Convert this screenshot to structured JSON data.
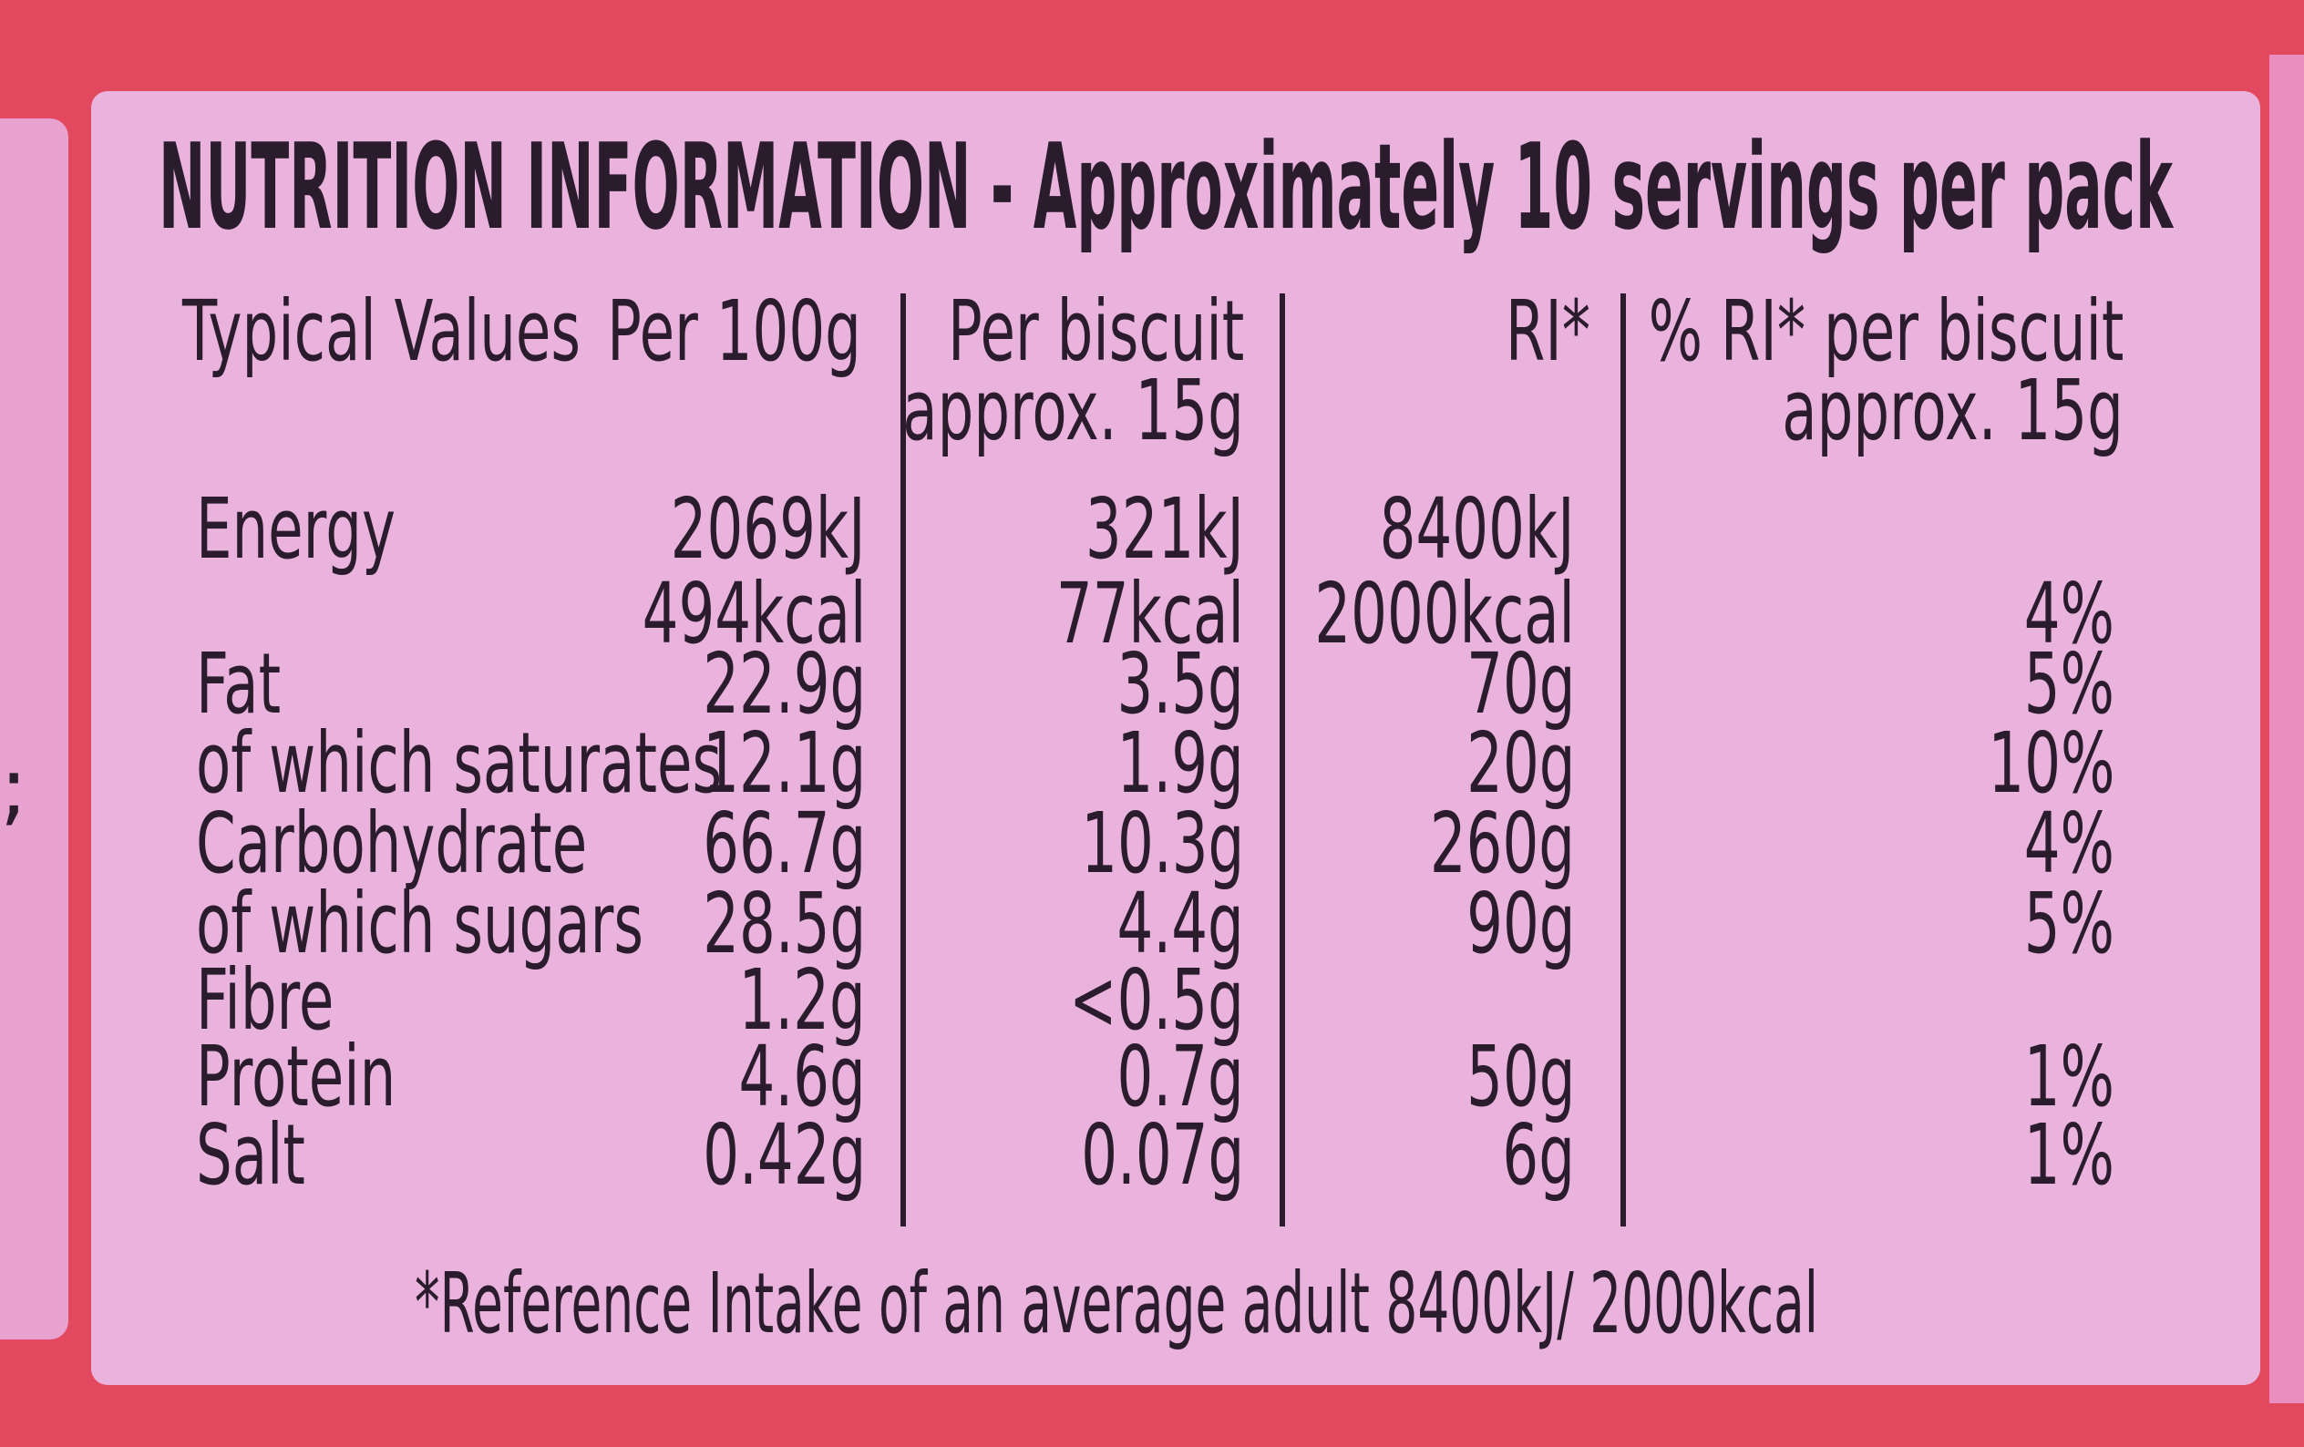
{
  "left_fragment": ";",
  "header": {
    "title": "NUTRITION INFORMATION - Approximately 10 servings per pack"
  },
  "table": {
    "columns": [
      {
        "line1": "Typical Values"
      },
      {
        "line1": "Per 100g"
      },
      {
        "line1": "Per biscuit",
        "line2": "approx. 15g"
      },
      {
        "line1": "RI*"
      },
      {
        "line1": "% RI* per biscuit",
        "line2": "approx. 15g"
      }
    ],
    "rows": [
      {
        "name": "Energy",
        "per_100g": "2069kJ",
        "per_biscuit": "321kJ",
        "ri": "8400kJ"
      },
      {
        "per_100g": "494kcal",
        "per_biscuit": "77kcal",
        "ri": "2000kcal",
        "pct_ri": "4%"
      },
      {
        "name": "Fat",
        "per_100g": "22.9g",
        "per_biscuit": "3.5g",
        "ri": "70g",
        "pct_ri": "5%"
      },
      {
        "name": "of which saturates",
        "per_100g": "12.1g",
        "per_biscuit": "1.9g",
        "ri": "20g",
        "pct_ri": "10%"
      },
      {
        "name": "Carbohydrate",
        "per_100g": "66.7g",
        "per_biscuit": "10.3g",
        "ri": "260g",
        "pct_ri": "4%"
      },
      {
        "name": "of which sugars",
        "per_100g": "28.5g",
        "per_biscuit": "4.4g",
        "ri": "90g",
        "pct_ri": "5%"
      },
      {
        "name": "Fibre",
        "per_100g": "1.2g",
        "per_biscuit": "<0.5g"
      },
      {
        "name": "Protein",
        "per_100g": "4.6g",
        "per_biscuit": "0.7g",
        "ri": "50g",
        "pct_ri": "1%"
      },
      {
        "name": "Salt",
        "per_100g": "0.42g",
        "per_biscuit": "0.07g",
        "ri": "6g",
        "pct_ri": "1%"
      }
    ]
  },
  "footnote": "*Reference Intake of an average adult 8400kJ/ 2000kcal"
}
